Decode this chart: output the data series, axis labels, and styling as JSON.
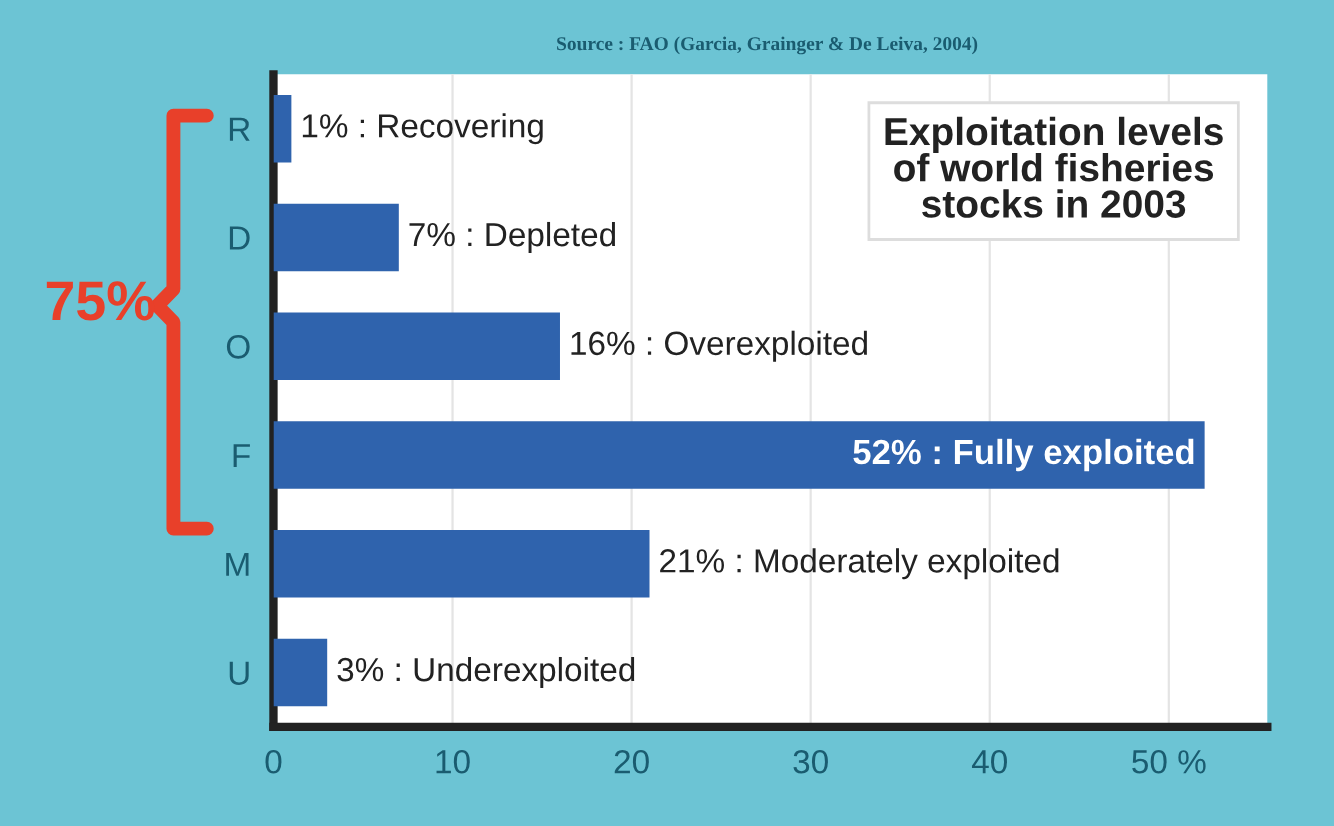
{
  "chart_data": {
    "type": "bar",
    "orientation": "horizontal",
    "title": "Exploitation levels\nof world fisheries\nstocks in 2003",
    "categories": [
      "R",
      "D",
      "O",
      "F",
      "M",
      "U"
    ],
    "values": [
      1,
      7,
      16,
      52,
      21,
      3
    ],
    "value_labels": [
      "1% : Recovering",
      "7% : Depleted",
      "16% : Overexploited",
      "52% : Fully exploited",
      "21% : Moderately exploited",
      "3% : Underexploited"
    ],
    "color": "#2f63ad",
    "xlim": [
      0,
      55.5
    ],
    "xticks": [
      0,
      10,
      20,
      30,
      40,
      {
        "value": 50,
        "label": "50 %"
      }
    ],
    "grid": "x",
    "legend": false,
    "annotations": [
      "Source : FAO (Garcia, Grainger & De Leiva, 2004)",
      "75%"
    ]
  }
}
